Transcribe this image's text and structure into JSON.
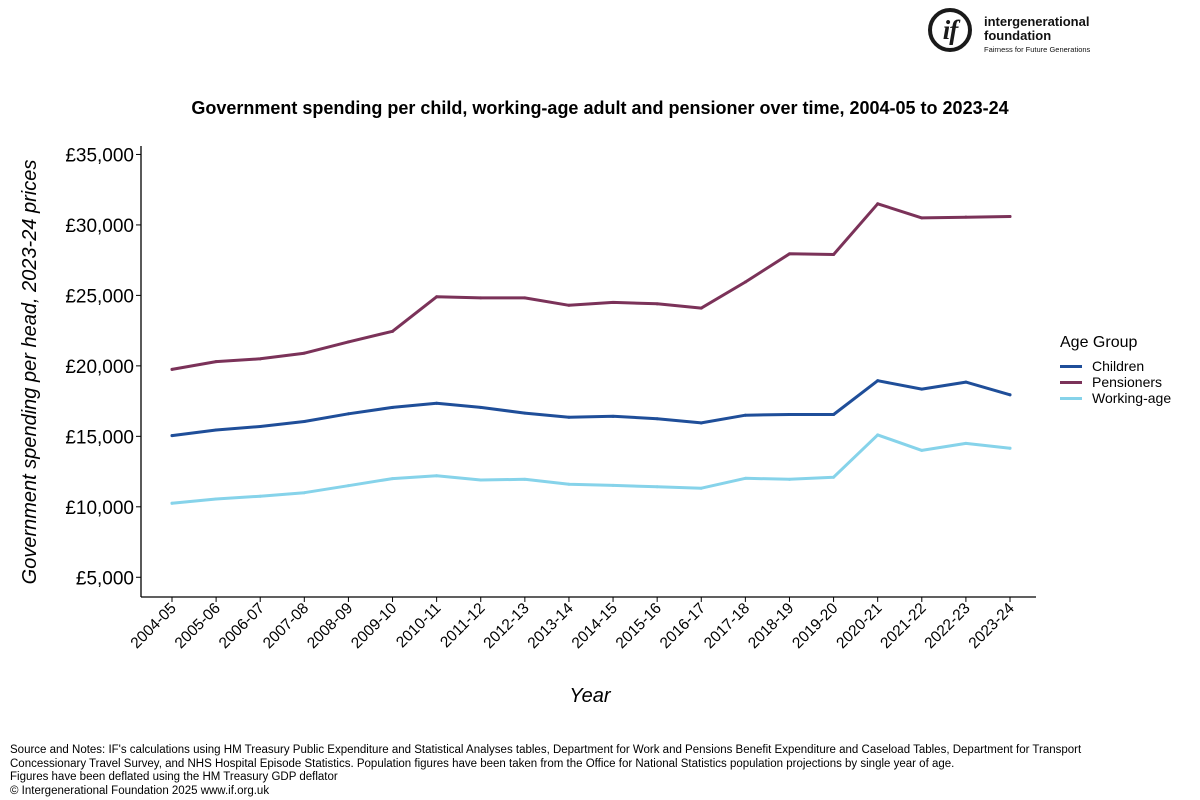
{
  "logo": {
    "mark": "if",
    "name": "intergenerational foundation",
    "tagline": "Fairness for Future Generations"
  },
  "chart_data": {
    "type": "line",
    "title": "Government spending per child, working-age adult and pensioner over time, 2004-05 to 2023-24",
    "xlabel": "Year",
    "ylabel": "Government spending per head, 2023-24 prices",
    "categories": [
      "2004-05",
      "2005-06",
      "2006-07",
      "2007-08",
      "2008-09",
      "2009-10",
      "2010-11",
      "2011-12",
      "2012-13",
      "2013-14",
      "2014-15",
      "2015-16",
      "2016-17",
      "2017-18",
      "2018-19",
      "2019-20",
      "2020-21",
      "2021-22",
      "2022-23",
      "2023-24"
    ],
    "ylim": [
      3600,
      35600
    ],
    "yticks": [
      5000,
      10000,
      15000,
      20000,
      25000,
      30000,
      35000
    ],
    "ytick_labels": [
      "£5,000",
      "£10,000",
      "£15,000",
      "£20,000",
      "£25,000",
      "£30,000",
      "£35,000"
    ],
    "legend_title": "Age Group",
    "legend_position": "right",
    "grid": false,
    "series": [
      {
        "name": "Children",
        "color": "#1f4e99",
        "values": [
          15050,
          15450,
          15700,
          16050,
          16600,
          17050,
          17350,
          17050,
          16650,
          16350,
          16420,
          16250,
          15950,
          16500,
          16550,
          16550,
          18950,
          18350,
          18850,
          17950
        ]
      },
      {
        "name": "Pensioners",
        "color": "#7b3259",
        "values": [
          19750,
          20300,
          20500,
          20900,
          21700,
          22450,
          24900,
          24820,
          24820,
          24300,
          24500,
          24400,
          24100,
          25950,
          27950,
          27900,
          31500,
          30500,
          30550,
          30600
        ]
      },
      {
        "name": "Working-age",
        "color": "#86d3ea",
        "values": [
          10250,
          10550,
          10750,
          11000,
          11500,
          12000,
          12200,
          11900,
          11950,
          11600,
          11520,
          11420,
          11320,
          12020,
          11950,
          12100,
          15100,
          14000,
          14500,
          14150
        ]
      }
    ]
  },
  "notes": {
    "line1": "Source and Notes: IF's calculations using HM Treasury Public Expenditure and Statistical Analyses tables, Department for Work and Pensions Benefit Expenditure and Caseload Tables, Department for Transport Concessionary Travel Survey, and NHS Hospital Episode Statistics. Population figures have been taken from the Office for National Statistics population projections by single year of age.",
    "line2": "Figures have been deflated using the HM Treasury GDP deflator",
    "line3": "© Intergenerational Foundation 2025 www.if.org.uk"
  }
}
